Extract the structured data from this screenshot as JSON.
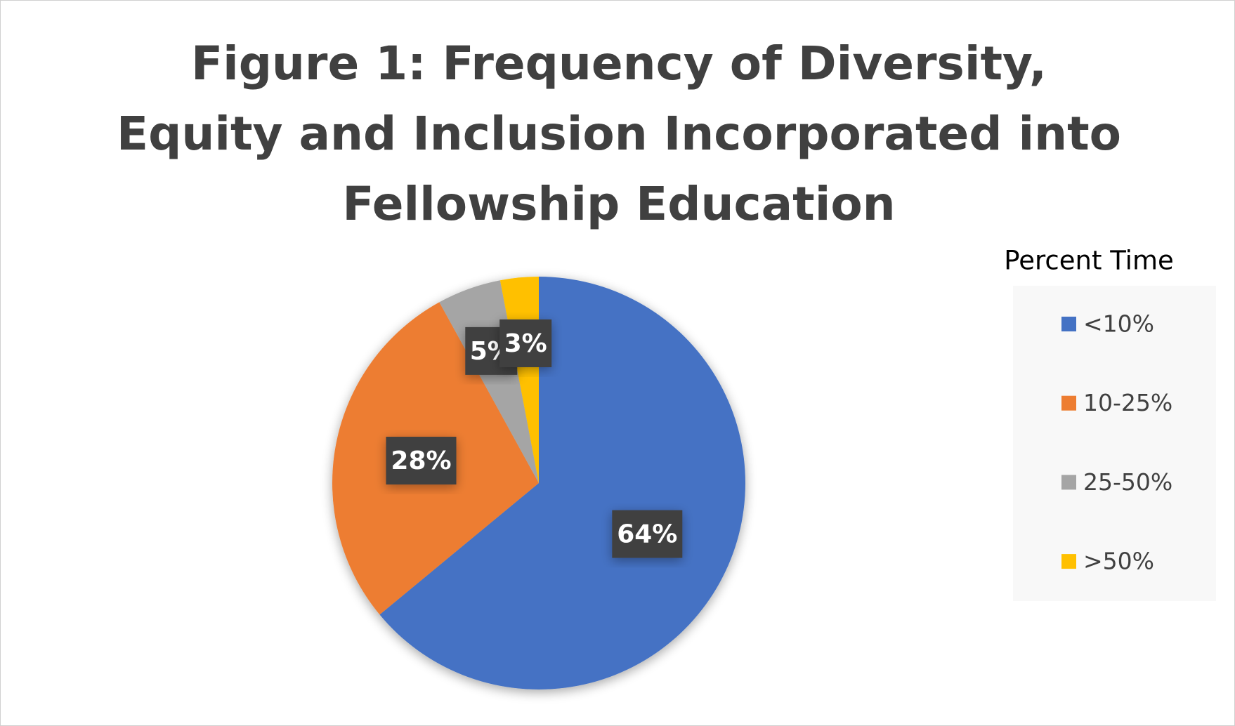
{
  "chart_data": {
    "type": "pie",
    "title": "Figure 1: Frequency of Diversity, Equity and Inclusion Incorporated into Fellowship Education",
    "legend_title": "Percent Time",
    "categories": [
      "<10%",
      "10-25%",
      "25-50%",
      ">50%"
    ],
    "values": [
      64,
      28,
      5,
      3
    ],
    "value_labels": [
      "64%",
      "28%",
      "5%",
      "3%"
    ],
    "colors": [
      "#4472c4",
      "#ed7d31",
      "#a5a5a5",
      "#ffc000"
    ],
    "legend": "right"
  }
}
